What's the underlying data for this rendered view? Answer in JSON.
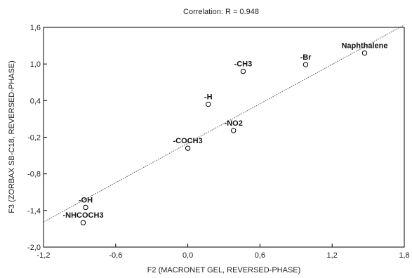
{
  "chart_data": {
    "type": "scatter",
    "title": "Correlation: R = 0.948",
    "xlabel": "F2 (MACRONET GEL, REVERSED-PHASE)",
    "ylabel": "F3 (ZORBAX SB-C18, REVERSED-PHASE)",
    "xlim": [
      -1.2,
      1.8
    ],
    "ylim": [
      -2.0,
      1.6
    ],
    "x_ticks": [
      "-1,2",
      "-0,6",
      "0,0",
      "0,6",
      "1,2",
      "1,8"
    ],
    "y_ticks": [
      "1,6",
      "1,0",
      "0,4",
      "-0,2",
      "-0,8",
      "-1,4",
      "-2,0"
    ],
    "x_tick_values": [
      -1.2,
      -0.6,
      0.0,
      0.6,
      1.2,
      1.8
    ],
    "y_tick_values": [
      1.6,
      1.0,
      0.4,
      -0.2,
      -0.8,
      -1.4,
      -2.0
    ],
    "grid": false,
    "points": [
      {
        "label": "Naphthalene",
        "x": 1.47,
        "y": 1.18
      },
      {
        "label": "-Br",
        "x": 0.98,
        "y": 0.99
      },
      {
        "label": "-CH3",
        "x": 0.46,
        "y": 0.88
      },
      {
        "label": "-H",
        "x": 0.17,
        "y": 0.34
      },
      {
        "label": "-NO2",
        "x": 0.38,
        "y": -0.09
      },
      {
        "label": "-COCH3",
        "x": 0.0,
        "y": -0.38
      },
      {
        "label": "-OH",
        "x": -0.85,
        "y": -1.35
      },
      {
        "label": "-NHCOCH3",
        "x": -0.87,
        "y": -1.6
      }
    ],
    "fit_line": {
      "x": [
        -1.2,
        1.8
      ],
      "y": [
        -1.59,
        1.64
      ]
    }
  }
}
